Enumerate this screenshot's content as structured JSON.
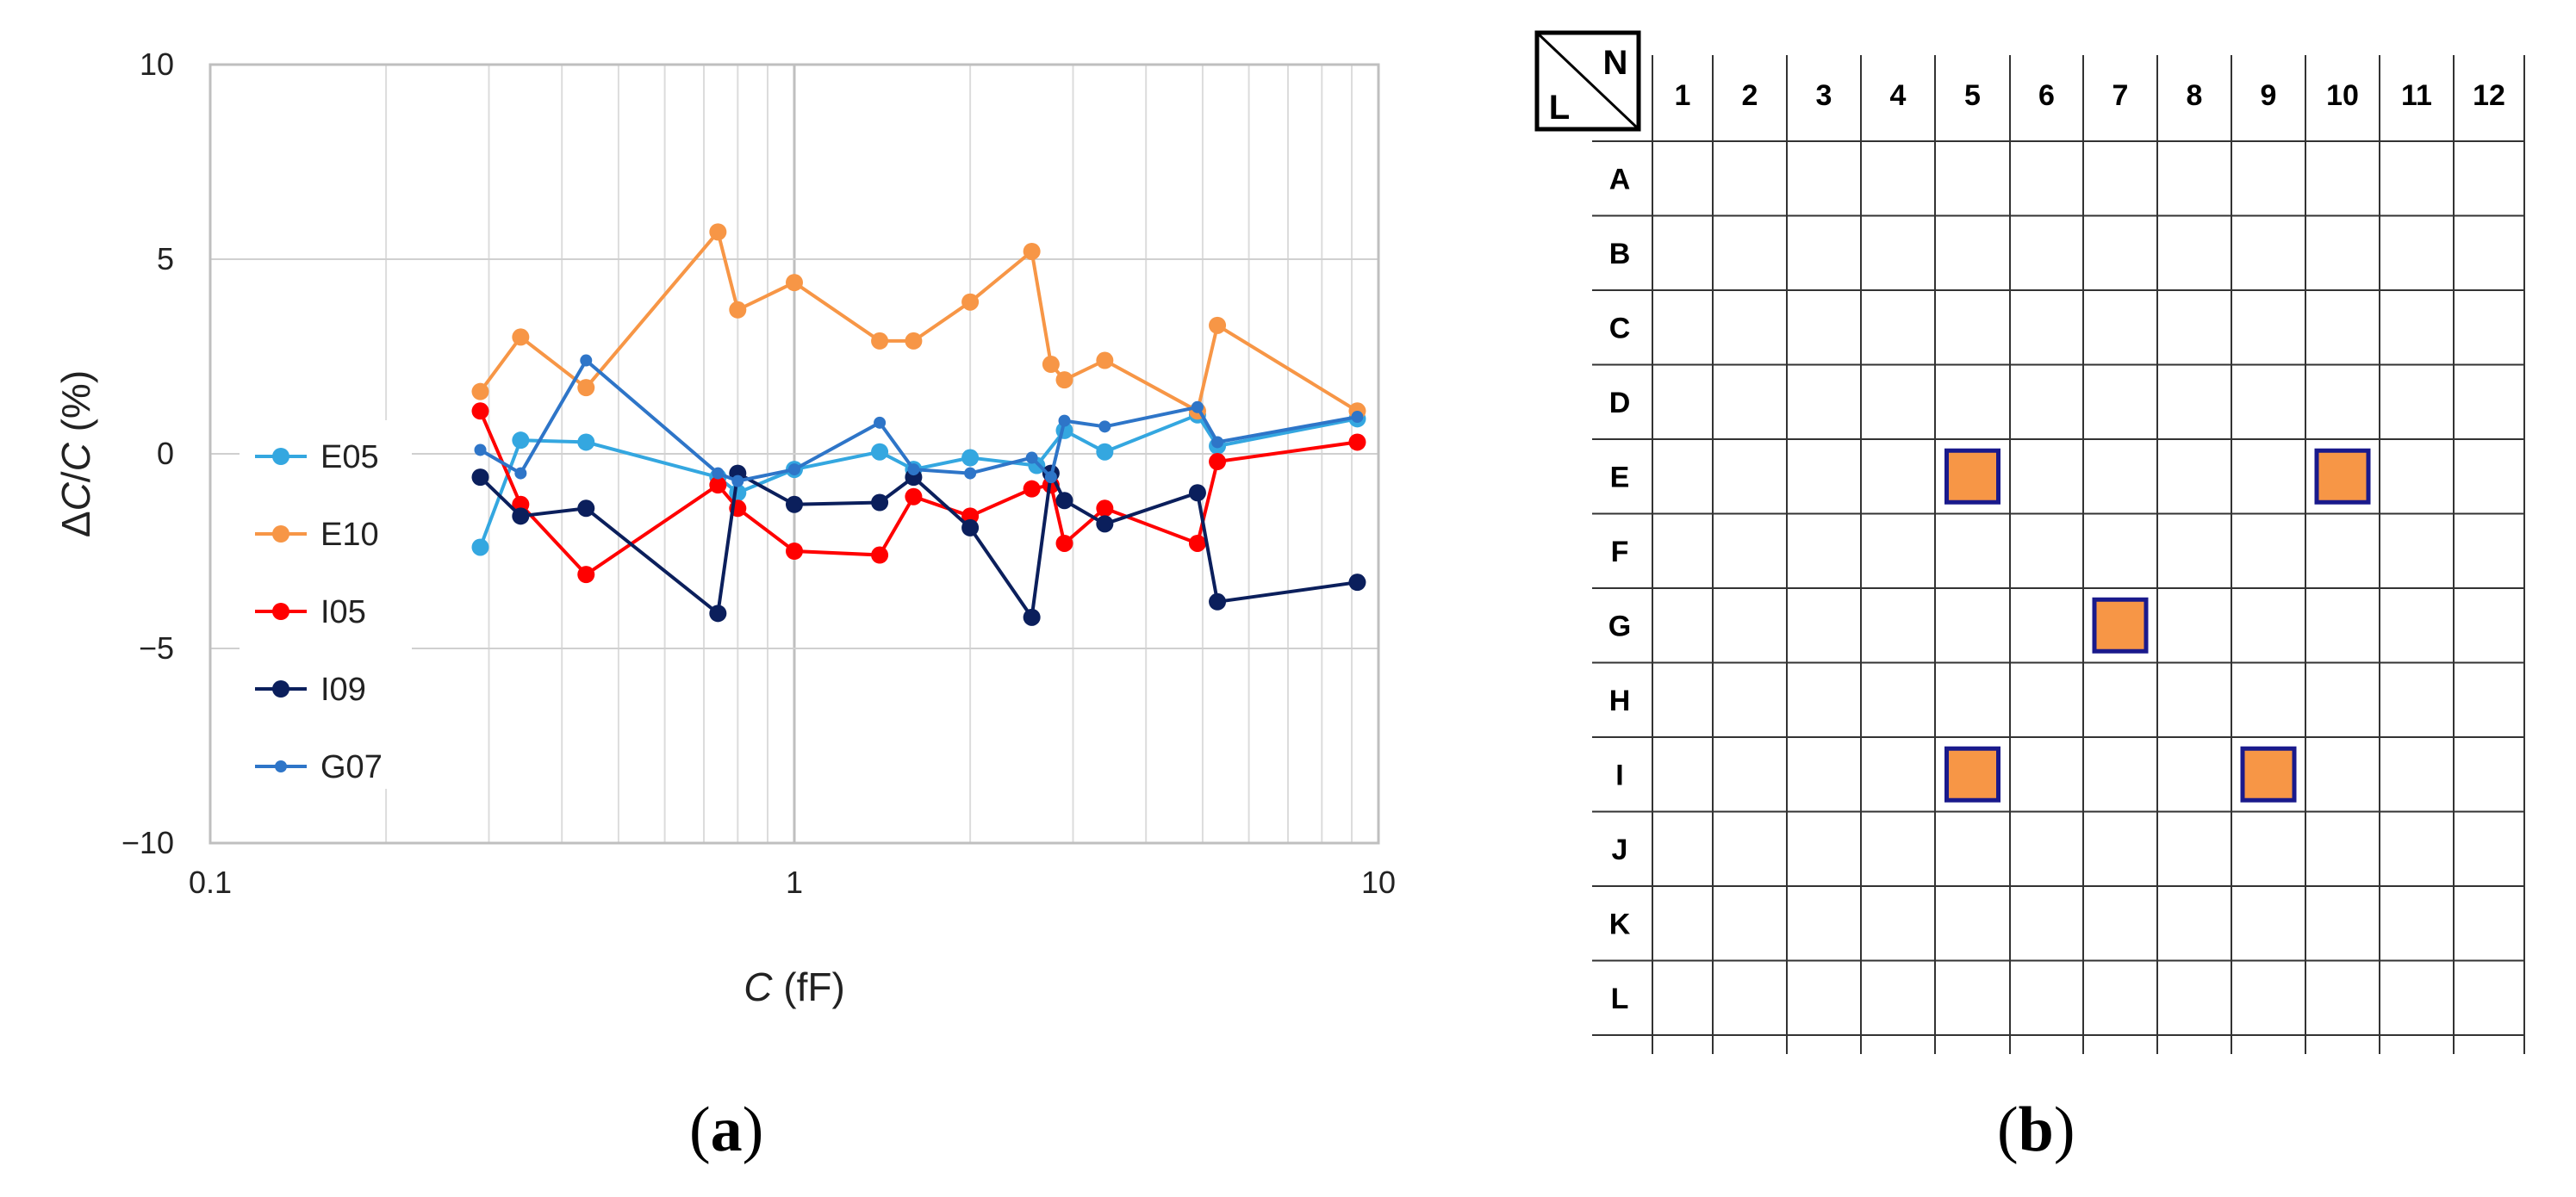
{
  "panel_a": {
    "label_letter": "a",
    "chart_data": {
      "type": "line",
      "x_scale": "log",
      "xlabel_var": "C",
      "xlabel_unit": " (fF)",
      "ylabel_delta": "Δ",
      "ylabel_var1": "C",
      "ylabel_slash": "/",
      "ylabel_var2": "C",
      "ylabel_unit": " (%)",
      "xlim": [
        0.1,
        10
      ],
      "ylim": [
        -10,
        10
      ],
      "x_ticks": [
        {
          "value": 0.1,
          "label": "0.1"
        },
        {
          "value": 1,
          "label": "1"
        },
        {
          "value": 10,
          "label": "10"
        }
      ],
      "y_ticks": [
        {
          "value": 10,
          "label": "10"
        },
        {
          "value": 5,
          "label": "5"
        },
        {
          "value": 0,
          "label": "0"
        },
        {
          "value": -5,
          "label": "−5"
        },
        {
          "value": -10,
          "label": "−10"
        }
      ],
      "grid": true,
      "legend_position": "left-inside",
      "series": [
        {
          "name": "E05",
          "color": "#34a7e0",
          "marker_size": "large",
          "x": [
            0.29,
            0.34,
            0.44,
            0.74,
            0.8,
            1.0,
            1.4,
            1.6,
            2.0,
            2.6,
            2.9,
            3.4,
            4.9,
            5.3,
            9.2
          ],
          "y": [
            -2.4,
            0.35,
            0.3,
            -0.6,
            -1.0,
            -0.4,
            0.05,
            -0.4,
            -0.1,
            -0.3,
            0.6,
            0.05,
            1.0,
            0.2,
            0.9
          ]
        },
        {
          "name": "E10",
          "color": "#f79646",
          "marker_size": "large",
          "x": [
            0.29,
            0.34,
            0.44,
            0.74,
            0.8,
            1.0,
            1.4,
            1.6,
            2.0,
            2.55,
            2.75,
            2.9,
            3.4,
            4.9,
            5.3,
            9.2
          ],
          "y": [
            1.6,
            3.0,
            1.7,
            5.7,
            3.7,
            4.4,
            2.9,
            2.9,
            3.9,
            5.2,
            2.3,
            1.9,
            2.4,
            1.1,
            3.3,
            1.1
          ]
        },
        {
          "name": "I05",
          "color": "#ff0000",
          "marker_size": "large",
          "x": [
            0.29,
            0.34,
            0.44,
            0.74,
            0.8,
            1.0,
            1.4,
            1.6,
            2.0,
            2.55,
            2.75,
            2.9,
            3.4,
            4.9,
            5.3,
            9.2
          ],
          "y": [
            1.1,
            -1.3,
            -3.1,
            -0.8,
            -1.4,
            -2.5,
            -2.6,
            -1.1,
            -1.6,
            -0.9,
            -0.8,
            -2.3,
            -1.4,
            -2.3,
            -0.2,
            0.3
          ]
        },
        {
          "name": "I09",
          "color": "#0b1f5c",
          "marker_size": "large",
          "x": [
            0.29,
            0.34,
            0.44,
            0.74,
            0.8,
            1.0,
            1.4,
            1.6,
            2.0,
            2.55,
            2.75,
            2.9,
            3.4,
            4.9,
            5.3,
            9.2
          ],
          "y": [
            -0.6,
            -1.6,
            -1.4,
            -4.1,
            -0.5,
            -1.3,
            -1.25,
            -0.6,
            -1.9,
            -4.2,
            -0.5,
            -1.2,
            -1.8,
            -1.0,
            -3.8,
            -3.3
          ]
        },
        {
          "name": "G07",
          "color": "#2e75c8",
          "marker_size": "small",
          "x": [
            0.29,
            0.34,
            0.44,
            0.74,
            0.8,
            1.0,
            1.4,
            1.6,
            2.0,
            2.55,
            2.75,
            2.9,
            3.4,
            4.9,
            5.3,
            9.2
          ],
          "y": [
            0.1,
            -0.5,
            2.4,
            -0.5,
            -0.7,
            -0.4,
            0.8,
            -0.4,
            -0.5,
            -0.1,
            -0.6,
            0.85,
            0.7,
            1.2,
            0.3,
            0.95
          ]
        }
      ]
    }
  },
  "panel_b": {
    "label_letter": "b",
    "corner_top": "N",
    "corner_bottom": "L",
    "columns": [
      "1",
      "2",
      "3",
      "4",
      "5",
      "6",
      "7",
      "8",
      "9",
      "10",
      "11",
      "12"
    ],
    "rows": [
      "A",
      "B",
      "C",
      "D",
      "E",
      "F",
      "G",
      "H",
      "I",
      "J",
      "K",
      "L"
    ],
    "marked_color": "#f79646",
    "marked_border": "#1a1a8c",
    "marked_cells": [
      {
        "row": "E",
        "col": "5"
      },
      {
        "row": "E",
        "col": "10"
      },
      {
        "row": "G",
        "col": "7"
      },
      {
        "row": "I",
        "col": "5"
      },
      {
        "row": "I",
        "col": "9"
      }
    ]
  }
}
